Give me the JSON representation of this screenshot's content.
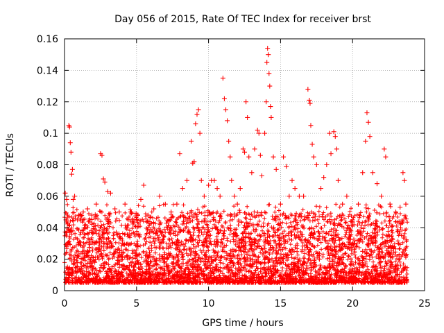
{
  "chart_data": {
    "type": "scatter",
    "title": "Day 056 of 2015, Rate Of TEC Index for receiver brst",
    "xlabel": "GPS time / hours",
    "ylabel": "ROTI / TECUs",
    "xlim": [
      0,
      25
    ],
    "ylim": [
      0,
      0.16
    ],
    "xticks": [
      0,
      5,
      10,
      15,
      20,
      25
    ],
    "yticks": [
      0,
      0.02,
      0.04,
      0.06,
      0.08,
      0.1,
      0.12,
      0.14,
      0.16
    ],
    "xtick_labels": [
      "0",
      "5",
      "10",
      "15",
      "20",
      "25"
    ],
    "ytick_labels": [
      "0",
      "0.02",
      "0.04",
      "0.06",
      "0.08",
      "0.1",
      "0.12",
      "0.14",
      "0.16"
    ],
    "grid": true,
    "marker": "+",
    "color": "#ff0000",
    "series": [
      {
        "values": [
          [
            0.05,
            0.062
          ],
          [
            0.1,
            0.045
          ],
          [
            0.15,
            0.058
          ],
          [
            0.2,
            0.03
          ],
          [
            0.3,
            0.105
          ],
          [
            0.35,
            0.104
          ],
          [
            0.4,
            0.094
          ],
          [
            0.45,
            0.088
          ],
          [
            0.5,
            0.074
          ],
          [
            0.55,
            0.077
          ],
          [
            0.6,
            0.058
          ],
          [
            0.7,
            0.06
          ],
          [
            0.9,
            0.045
          ],
          [
            1.0,
            0.048
          ],
          [
            1.3,
            0.05
          ],
          [
            1.6,
            0.052
          ],
          [
            1.9,
            0.048
          ],
          [
            2.2,
            0.055
          ],
          [
            2.5,
            0.087
          ],
          [
            2.6,
            0.086
          ],
          [
            2.7,
            0.071
          ],
          [
            2.8,
            0.069
          ],
          [
            3.0,
            0.063
          ],
          [
            3.2,
            0.062
          ],
          [
            3.5,
            0.052
          ],
          [
            3.8,
            0.05
          ],
          [
            4.2,
            0.055
          ],
          [
            4.6,
            0.05
          ],
          [
            5.0,
            0.045
          ],
          [
            5.3,
            0.058
          ],
          [
            5.5,
            0.067
          ],
          [
            5.8,
            0.048
          ],
          [
            6.2,
            0.052
          ],
          [
            6.6,
            0.06
          ],
          [
            7.0,
            0.055
          ],
          [
            7.4,
            0.05
          ],
          [
            7.8,
            0.055
          ],
          [
            8.0,
            0.087
          ],
          [
            8.2,
            0.065
          ],
          [
            8.5,
            0.07
          ],
          [
            8.8,
            0.095
          ],
          [
            8.9,
            0.081
          ],
          [
            9.0,
            0.082
          ],
          [
            9.1,
            0.106
          ],
          [
            9.2,
            0.112
          ],
          [
            9.3,
            0.115
          ],
          [
            9.4,
            0.1
          ],
          [
            9.5,
            0.07
          ],
          [
            9.7,
            0.06
          ],
          [
            10.0,
            0.067
          ],
          [
            10.2,
            0.07
          ],
          [
            10.4,
            0.07
          ],
          [
            10.6,
            0.065
          ],
          [
            10.8,
            0.06
          ],
          [
            11.0,
            0.135
          ],
          [
            11.1,
            0.122
          ],
          [
            11.2,
            0.115
          ],
          [
            11.3,
            0.108
          ],
          [
            11.4,
            0.095
          ],
          [
            11.5,
            0.085
          ],
          [
            11.6,
            0.07
          ],
          [
            11.8,
            0.06
          ],
          [
            12.0,
            0.055
          ],
          [
            12.2,
            0.065
          ],
          [
            12.4,
            0.09
          ],
          [
            12.5,
            0.088
          ],
          [
            12.6,
            0.12
          ],
          [
            12.7,
            0.11
          ],
          [
            12.8,
            0.085
          ],
          [
            13.0,
            0.075
          ],
          [
            13.2,
            0.09
          ],
          [
            13.4,
            0.102
          ],
          [
            13.5,
            0.1
          ],
          [
            13.6,
            0.086
          ],
          [
            13.7,
            0.073
          ],
          [
            13.9,
            0.1
          ],
          [
            14.0,
            0.12
          ],
          [
            14.05,
            0.145
          ],
          [
            14.1,
            0.154
          ],
          [
            14.15,
            0.15
          ],
          [
            14.2,
            0.138
          ],
          [
            14.25,
            0.13
          ],
          [
            14.3,
            0.117
          ],
          [
            14.35,
            0.11
          ],
          [
            14.5,
            0.085
          ],
          [
            14.7,
            0.077
          ],
          [
            15.0,
            0.055
          ],
          [
            15.2,
            0.085
          ],
          [
            15.4,
            0.079
          ],
          [
            15.6,
            0.06
          ],
          [
            15.8,
            0.07
          ],
          [
            16.0,
            0.065
          ],
          [
            16.3,
            0.06
          ],
          [
            16.6,
            0.06
          ],
          [
            16.9,
            0.128
          ],
          [
            17.0,
            0.121
          ],
          [
            17.05,
            0.119
          ],
          [
            17.1,
            0.105
          ],
          [
            17.2,
            0.093
          ],
          [
            17.3,
            0.085
          ],
          [
            17.5,
            0.08
          ],
          [
            17.8,
            0.065
          ],
          [
            18.0,
            0.072
          ],
          [
            18.2,
            0.08
          ],
          [
            18.4,
            0.1
          ],
          [
            18.5,
            0.087
          ],
          [
            18.7,
            0.101
          ],
          [
            18.8,
            0.098
          ],
          [
            18.9,
            0.09
          ],
          [
            19.0,
            0.07
          ],
          [
            19.3,
            0.055
          ],
          [
            19.6,
            0.06
          ],
          [
            20.0,
            0.045
          ],
          [
            20.4,
            0.055
          ],
          [
            20.7,
            0.075
          ],
          [
            20.9,
            0.095
          ],
          [
            21.0,
            0.113
          ],
          [
            21.1,
            0.107
          ],
          [
            21.2,
            0.098
          ],
          [
            21.4,
            0.075
          ],
          [
            21.7,
            0.068
          ],
          [
            22.0,
            0.06
          ],
          [
            22.2,
            0.09
          ],
          [
            22.3,
            0.085
          ],
          [
            22.6,
            0.055
          ],
          [
            23.0,
            0.05
          ],
          [
            23.3,
            0.053
          ],
          [
            23.5,
            0.075
          ],
          [
            23.6,
            0.07
          ],
          [
            23.7,
            0.055
          ],
          [
            0.2,
            0.015
          ],
          [
            0.6,
            0.02
          ],
          [
            1.1,
            0.012
          ],
          [
            1.6,
            0.025
          ],
          [
            2.1,
            0.018
          ],
          [
            2.7,
            0.03
          ],
          [
            3.3,
            0.014
          ],
          [
            3.9,
            0.022
          ],
          [
            4.5,
            0.016
          ],
          [
            5.1,
            0.028
          ],
          [
            5.7,
            0.012
          ],
          [
            6.3,
            0.024
          ],
          [
            6.9,
            0.018
          ],
          [
            7.5,
            0.03
          ],
          [
            8.1,
            0.014
          ],
          [
            8.7,
            0.026
          ],
          [
            9.3,
            0.02
          ],
          [
            9.9,
            0.034
          ],
          [
            10.5,
            0.015
          ],
          [
            11.1,
            0.038
          ],
          [
            11.7,
            0.022
          ],
          [
            12.3,
            0.03
          ],
          [
            12.9,
            0.016
          ],
          [
            13.5,
            0.028
          ],
          [
            14.1,
            0.036
          ],
          [
            14.7,
            0.019
          ],
          [
            15.3,
            0.03
          ],
          [
            15.9,
            0.014
          ],
          [
            16.5,
            0.026
          ],
          [
            17.1,
            0.035
          ],
          [
            17.7,
            0.02
          ],
          [
            18.3,
            0.03
          ],
          [
            18.9,
            0.016
          ],
          [
            19.5,
            0.028
          ],
          [
            20.1,
            0.012
          ],
          [
            20.7,
            0.025
          ],
          [
            21.3,
            0.034
          ],
          [
            21.9,
            0.018
          ],
          [
            22.5,
            0.028
          ],
          [
            23.1,
            0.014
          ],
          [
            23.7,
            0.022
          ]
        ]
      }
    ]
  }
}
